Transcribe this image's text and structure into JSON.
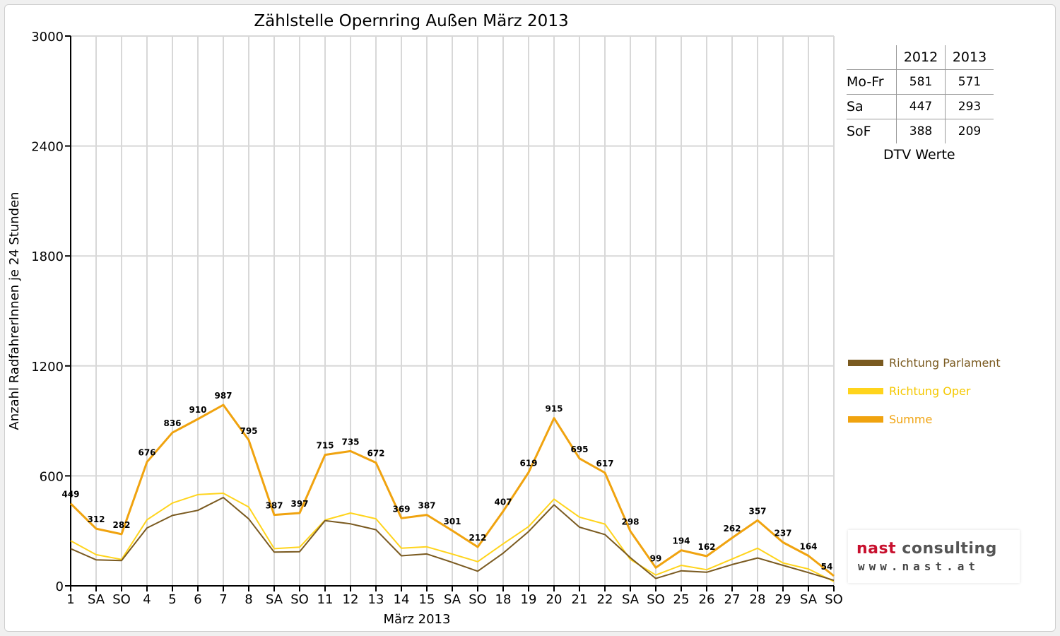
{
  "colors": {
    "parlament": "#7a5a20",
    "oper": "#ffd41c",
    "summe": "#f0a30f",
    "weekend_label": "#ff0000",
    "grid": "#d8d8d8"
  },
  "chart_data": {
    "type": "line",
    "title": "Zählstelle Opernring Außen März 2013",
    "xlabel": "März 2013",
    "ylabel": "Anzahl RadfahrerInnen je 24 Stunden",
    "ylim": [
      0,
      3000
    ],
    "yticks": [
      0,
      600,
      1200,
      1800,
      2400,
      3000
    ],
    "grid": true,
    "legend_position": "right",
    "categories": [
      "1",
      "SA",
      "SO",
      "4",
      "5",
      "6",
      "7",
      "8",
      "SA",
      "SO",
      "11",
      "12",
      "13",
      "14",
      "15",
      "SA",
      "SO",
      "18",
      "19",
      "20",
      "21",
      "22",
      "SA",
      "SO",
      "25",
      "26",
      "27",
      "28",
      "29",
      "SA",
      "SO"
    ],
    "weekend_flags": [
      false,
      false,
      true,
      false,
      false,
      false,
      false,
      false,
      false,
      true,
      false,
      false,
      false,
      false,
      false,
      false,
      true,
      false,
      false,
      false,
      false,
      false,
      false,
      true,
      false,
      false,
      false,
      false,
      false,
      false,
      true
    ],
    "series": [
      {
        "name": "Richtung Parlament",
        "color_key": "parlament",
        "values": [
          203,
          142,
          138,
          316,
          384,
          412,
          482,
          365,
          184,
          186,
          356,
          338,
          306,
          164,
          174,
          128,
          80,
          178,
          296,
          442,
          320,
          280,
          154,
          40,
          82,
          74,
          116,
          152,
          112,
          72,
          30
        ]
      },
      {
        "name": "Richtung Oper",
        "color_key": "oper",
        "values": [
          246,
          170,
          144,
          360,
          452,
          498,
          505,
          430,
          203,
          211,
          359,
          397,
          366,
          205,
          213,
          173,
          132,
          229,
          323,
          473,
          375,
          337,
          144,
          59,
          112,
          88,
          146,
          205,
          125,
          92,
          24
        ]
      },
      {
        "name": "Summe",
        "color_key": "summe",
        "values": [
          449,
          312,
          282,
          676,
          836,
          910,
          987,
          795,
          387,
          397,
          715,
          735,
          672,
          369,
          387,
          301,
          212,
          407,
          619,
          915,
          695,
          617,
          298,
          99,
          194,
          162,
          262,
          357,
          237,
          164,
          54
        ]
      }
    ],
    "data_labels": [
      449,
      312,
      282,
      676,
      836,
      910,
      987,
      795,
      387,
      397,
      715,
      735,
      672,
      369,
      387,
      301,
      212,
      407,
      619,
      915,
      695,
      617,
      298,
      99,
      194,
      162,
      262,
      357,
      237,
      164,
      54
    ]
  },
  "dtv": {
    "caption": "DTV Werte",
    "headers": [
      "2012",
      "2013"
    ],
    "rows": [
      {
        "label": "Mo-Fr",
        "v2012": "581",
        "v2013": "571"
      },
      {
        "label": "Sa",
        "v2012": "447",
        "v2013": "293"
      },
      {
        "label": "SoF",
        "v2012": "388",
        "v2013": "209"
      }
    ]
  },
  "logo": {
    "word1": "nast",
    "word2": "consulting",
    "url": "www.nast.at"
  }
}
